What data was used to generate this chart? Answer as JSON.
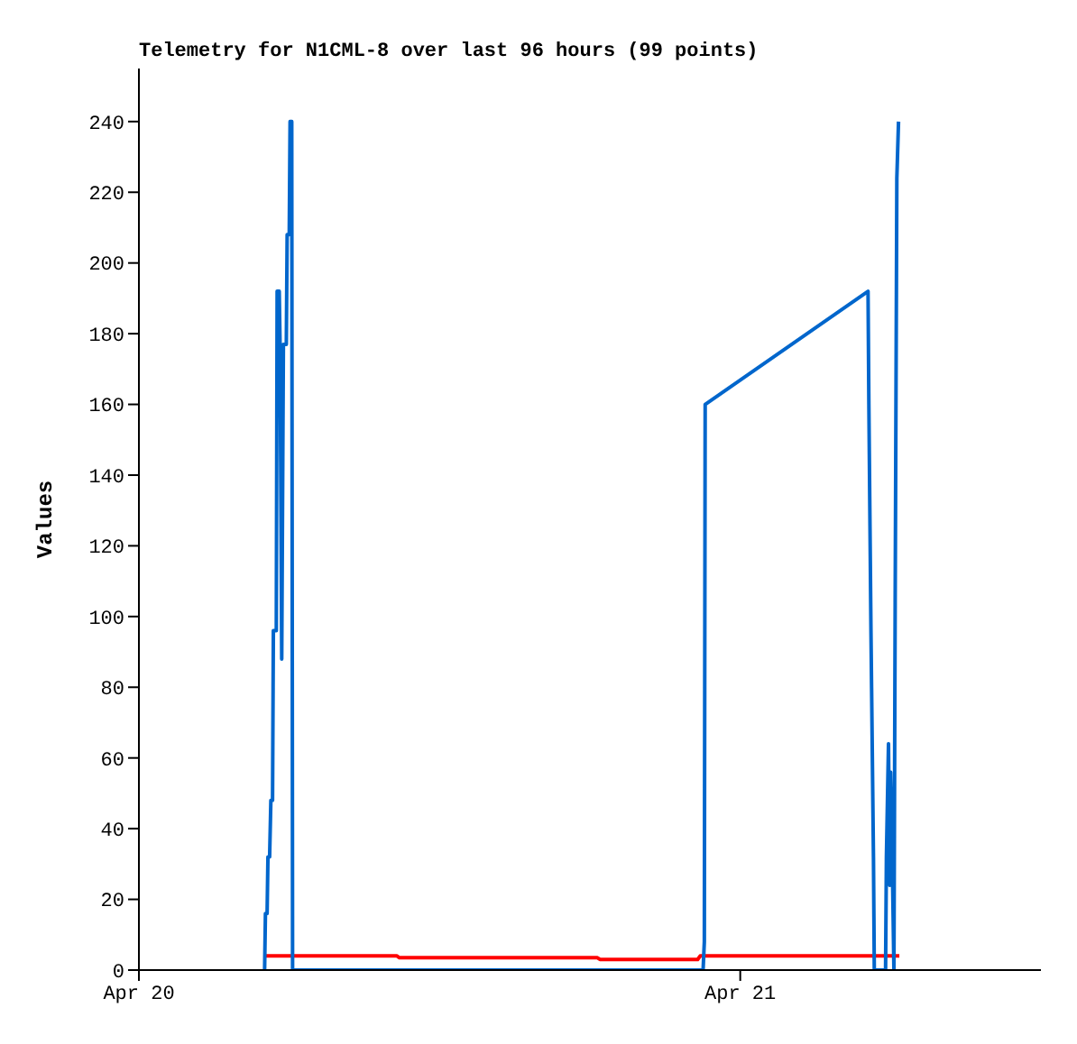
{
  "chart_data": {
    "type": "line",
    "title": "Telemetry for N1CML-8 over last 96 hours (99 points)",
    "ylabel": "Values",
    "xlim": [
      "--04-20",
      "--04-21T12:00"
    ],
    "xticks": [
      {
        "value": "--04-20",
        "label": "Apr 20"
      },
      {
        "value": "--04-21",
        "label": "Apr 21"
      }
    ],
    "ylim": [
      0,
      255
    ],
    "yticks": [
      0,
      20,
      40,
      60,
      80,
      100,
      120,
      140,
      160,
      180,
      200,
      220,
      240
    ],
    "series": [
      {
        "color": "#ff0000",
        "x": [
          "--04-20T05:03",
          "--04-20T10:18",
          "--04-20T10:24",
          "--04-20T18:18",
          "--04-20T18:24",
          "--04-20T22:18",
          "--04-20T22:24",
          "--04-21T06:21"
        ],
        "values": [
          4,
          4,
          3.5,
          3.5,
          3,
          3,
          4,
          4
        ]
      },
      {
        "color": "#0066cc",
        "x": [
          "--04-20T05:01",
          "--04-20T05:03",
          "--04-20T05:07",
          "--04-20T05:09",
          "--04-20T05:13",
          "--04-20T05:16",
          "--04-20T05:20",
          "--04-20T05:22",
          "--04-20T05:29",
          "--04-20T05:31",
          "--04-20T05:36",
          "--04-20T05:38",
          "--04-20T05:42",
          "--04-20T05:46",
          "--04-20T05:53",
          "--04-20T05:55",
          "--04-20T06:00",
          "--04-20T06:02",
          "--04-20T06:06",
          "--04-20T06:08",
          "--04-20T22:31",
          "--04-20T22:34",
          "--04-20T22:36",
          "--04-21T05:06",
          "--04-21T05:08",
          "--04-21T05:13",
          "--04-21T05:19",
          "--04-21T05:21",
          "--04-21T05:48",
          "--04-21T05:50",
          "--04-21T05:55",
          "--04-21T05:58",
          "--04-21T06:00",
          "--04-21T06:03",
          "--04-21T06:08",
          "--04-21T06:11",
          "--04-21T06:15",
          "--04-21T06:19"
        ],
        "values": [
          0,
          16,
          16,
          32,
          32,
          48,
          48,
          96,
          96,
          192,
          192,
          177,
          88,
          177,
          177,
          208,
          208,
          240,
          240,
          0,
          0,
          8,
          160,
          192,
          160,
          96,
          32,
          0,
          0,
          32,
          64,
          24,
          56,
          40,
          0,
          104,
          224,
          240
        ]
      }
    ]
  }
}
